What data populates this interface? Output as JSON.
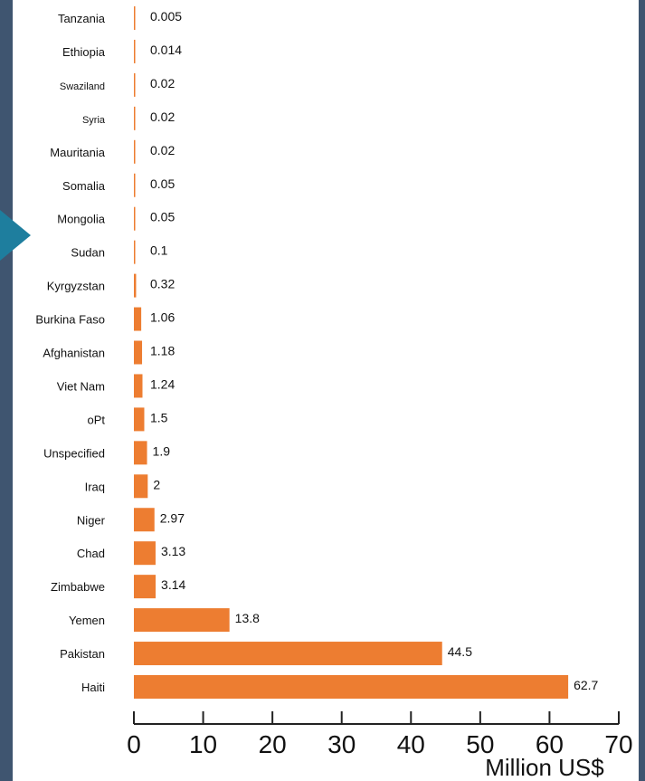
{
  "chart_data": {
    "type": "bar",
    "orientation": "horizontal",
    "categories": [
      "Tanzania",
      "Ethiopia",
      "Swaziland",
      "Syria",
      "Mauritania",
      "Somalia",
      "Mongolia",
      "Sudan",
      "Kyrgyzstan",
      "Burkina Faso",
      "Afghanistan",
      "Viet Nam",
      "oPt",
      "Unspecified",
      "Iraq",
      "Niger",
      "Chad",
      "Zimbabwe",
      "Yemen",
      "Pakistan",
      "Haiti"
    ],
    "values": [
      0.005,
      0.014,
      0.02,
      0.02,
      0.02,
      0.05,
      0.05,
      0.1,
      0.32,
      1.06,
      1.18,
      1.24,
      1.5,
      1.9,
      2,
      2.97,
      3.13,
      3.14,
      13.8,
      44.5,
      62.7
    ],
    "value_labels": [
      "0.005",
      "0.014",
      "0.02",
      "0.02",
      "0.02",
      "0.05",
      "0.05",
      "0.1",
      "0.32",
      "1.06",
      "1.18",
      "1.24",
      "1.5",
      "1.9",
      "2",
      "2.97",
      "3.13",
      "3.14",
      "13.8",
      "44.5",
      "62.7"
    ],
    "xlim": [
      0,
      70
    ],
    "xticks": [
      0,
      10,
      20,
      30,
      40,
      50,
      60,
      70
    ],
    "xlabel": "Million US$",
    "ylabel": "",
    "title": "",
    "grid": false,
    "bar_color": "#ed7d31"
  },
  "colors": {
    "frame": "#3f5570",
    "pointer": "#1e7e9e",
    "axis": "#222222"
  }
}
